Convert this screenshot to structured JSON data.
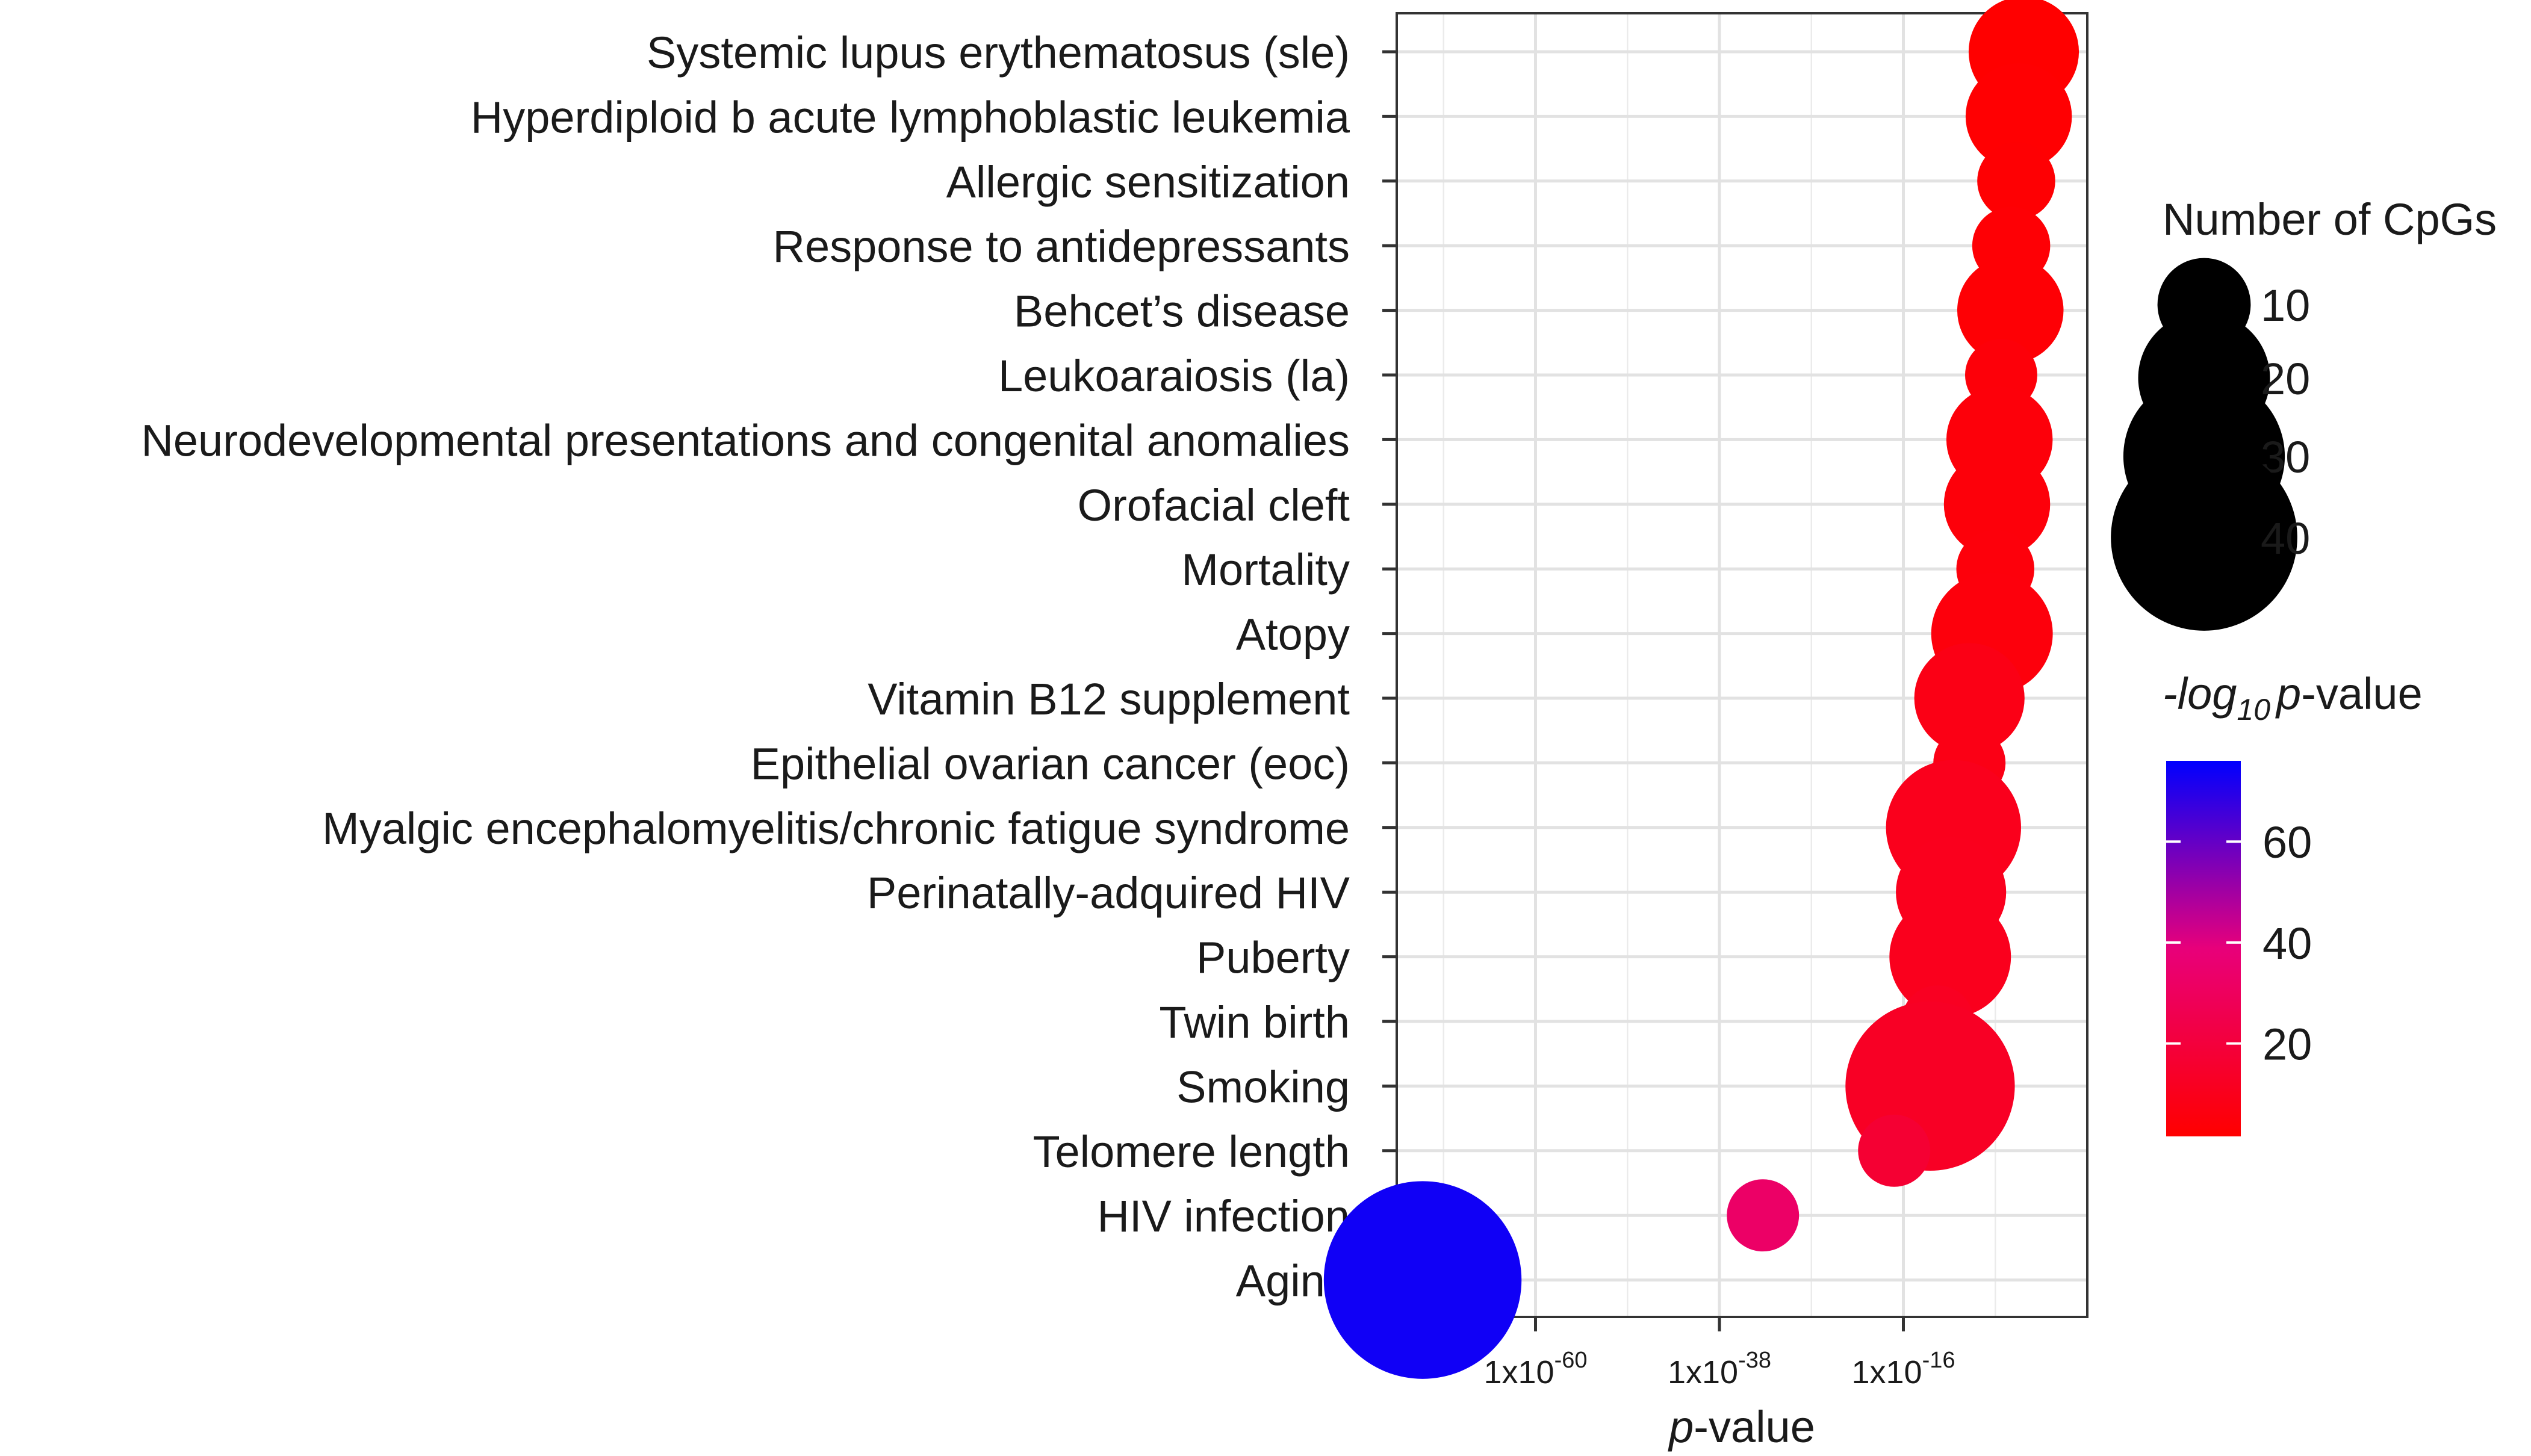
{
  "chart_data": {
    "type": "scatter",
    "title": "",
    "xlabel": {
      "italic": "p",
      "rest": "-value"
    },
    "ylabel": "",
    "x_scale": "log10",
    "x_ticks": [
      {
        "base": "1x10",
        "exp": "-60",
        "log10": -60
      },
      {
        "base": "1x10",
        "exp": "-38",
        "log10": -38
      },
      {
        "base": "1x10",
        "exp": "-16",
        "log10": -16
      }
    ],
    "xlim_log10": [
      -76.6,
      6.0
    ],
    "categories": [
      "Systemic lupus erythematosus (sle)",
      "Hyperdiploid b acute lymphoblastic leukemia",
      "Allergic sensitization",
      "Response to antidepressants",
      "Behcet’s disease",
      "Leukoaraiosis (la)",
      "Neurodevelopmental presentations and congenital anomalies",
      "Orofacial cleft",
      "Mortality",
      "Atopy",
      "Vitamin B12 supplement",
      "Epithelial ovarian cancer (eoc)",
      "Myalgic encephalomyelitis/chronic fatigue syndrome",
      "Perinatally-adquired HIV",
      "Puberty",
      "Twin birth",
      "Smoking",
      "Telomere length",
      "HIV infection",
      "Aging"
    ],
    "points": [
      {
        "label": "Systemic lupus erythematosus (sle)",
        "log10_p": -1.6,
        "cpgs": 14
      },
      {
        "label": "Hyperdiploid b acute lymphoblastic leukemia",
        "log10_p": -2.2,
        "cpgs": 13
      },
      {
        "label": "Allergic sensitization",
        "log10_p": -2.5,
        "cpgs": 7
      },
      {
        "label": "Response to antidepressants",
        "log10_p": -3.1,
        "cpgs": 7
      },
      {
        "label": "Behcet’s disease",
        "log10_p": -3.2,
        "cpgs": 13
      },
      {
        "label": "Leukoaraiosis (la)",
        "log10_p": -4.3,
        "cpgs": 6
      },
      {
        "label": "Neurodevelopmental presentations and congenital anomalies",
        "log10_p": -4.5,
        "cpgs": 13
      },
      {
        "label": "Orofacial cleft",
        "log10_p": -4.8,
        "cpgs": 13
      },
      {
        "label": "Mortality",
        "log10_p": -5.0,
        "cpgs": 7
      },
      {
        "label": "Atopy",
        "log10_p": -5.4,
        "cpgs": 17
      },
      {
        "label": "Vitamin B12 supplement",
        "log10_p": -8.1,
        "cpgs": 14
      },
      {
        "label": "Epithelial ovarian cancer (eoc)",
        "log10_p": -8.1,
        "cpgs": 6
      },
      {
        "label": "Myalgic encephalomyelitis/chronic fatigue syndrome",
        "log10_p": -10.0,
        "cpgs": 21
      },
      {
        "label": "Perinatally-adquired HIV",
        "log10_p": -10.3,
        "cpgs": 14
      },
      {
        "label": "Puberty",
        "log10_p": -10.4,
        "cpgs": 17
      },
      {
        "label": "Twin birth",
        "log10_p": -11.9,
        "cpgs": 6
      },
      {
        "label": "Smoking",
        "log10_p": -12.8,
        "cpgs": 33
      },
      {
        "label": "Telomere length",
        "log10_p": -17.1,
        "cpgs": 6
      },
      {
        "label": "HIV infection",
        "log10_p": -32.8,
        "cpgs": 6
      },
      {
        "label": "Aging",
        "log10_p": -73.5,
        "cpgs": 45
      }
    ],
    "size_legend": {
      "title": "Number of CpGs",
      "values": [
        10,
        20,
        30,
        40
      ]
    },
    "color_legend": {
      "title_prefix": "-log",
      "title_sub": "10",
      "title_italic": "p",
      "title_suffix": "-value",
      "ticks": [
        20,
        40,
        60
      ],
      "range": [
        1.6,
        76
      ],
      "colors": {
        "low": "#FF0000",
        "high": "#0000FF",
        "mid": "#E8007A"
      }
    },
    "grid": true,
    "legend_position": "right"
  }
}
